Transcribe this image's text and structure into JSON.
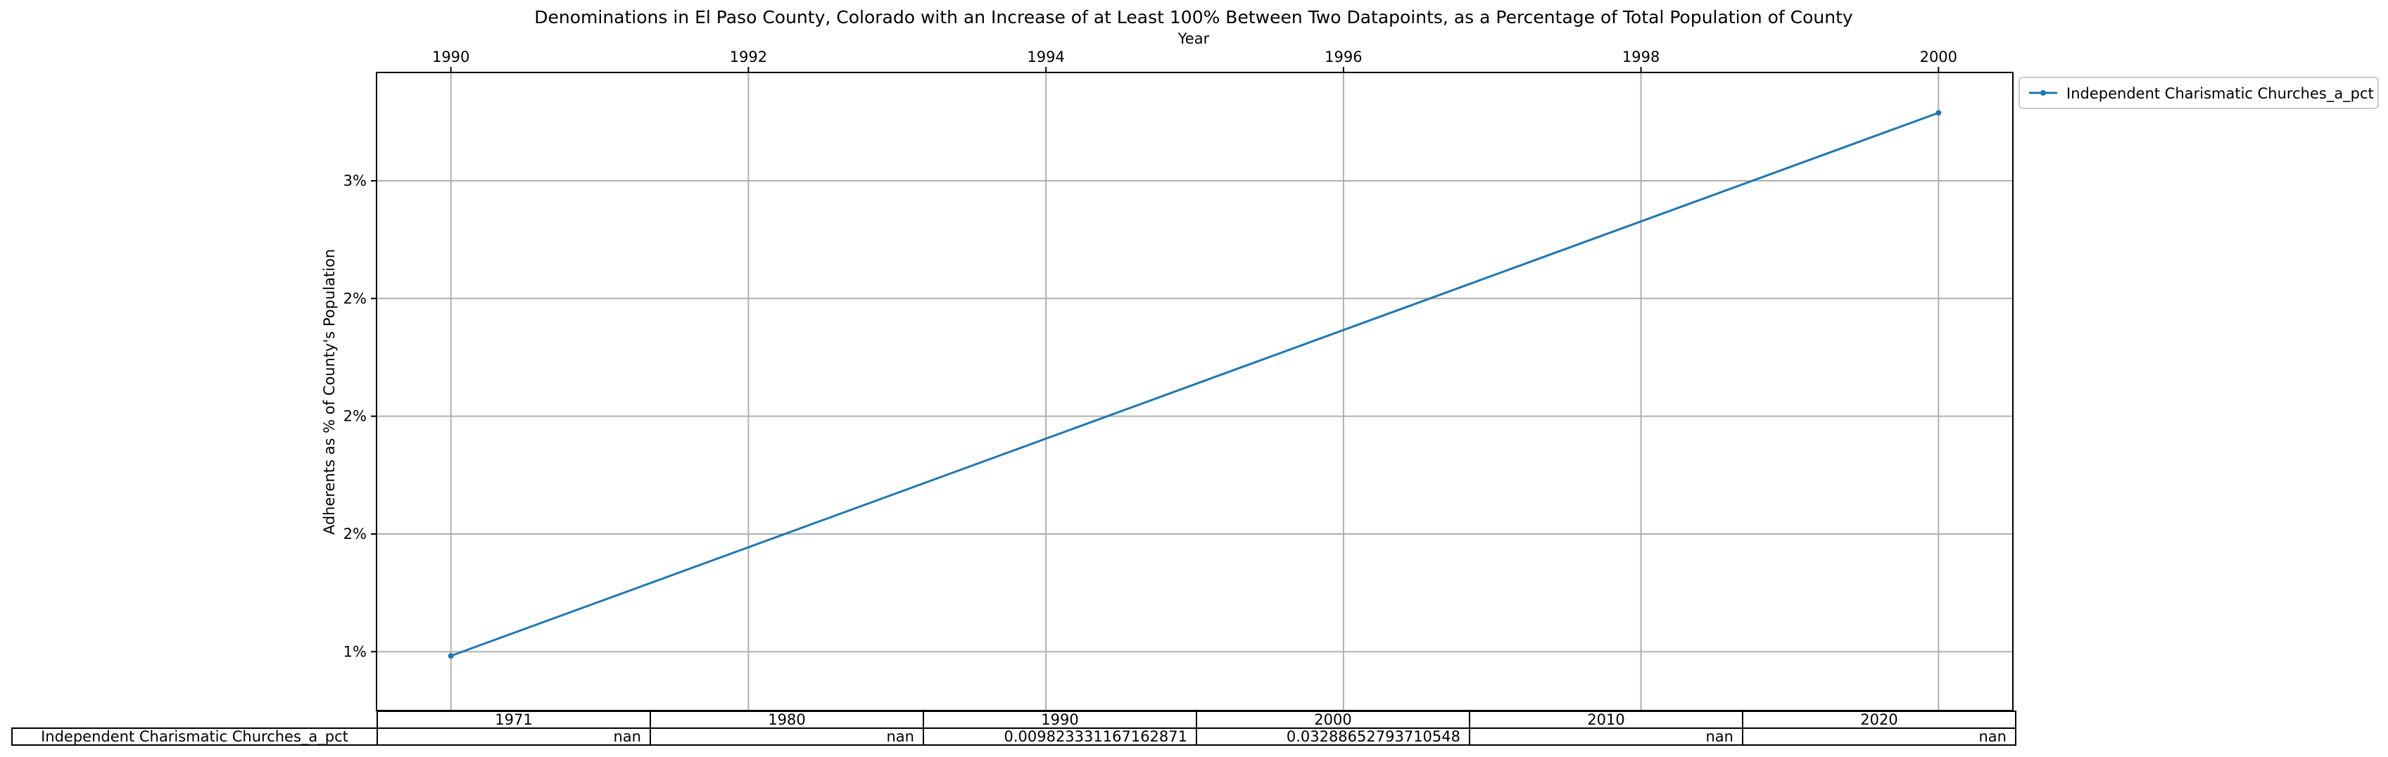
{
  "chart_data": {
    "type": "line",
    "title": "Denominations in El Paso County, Colorado with an Increase of at Least 100% Between Two Datapoints, as a Percentage of Total Population of County",
    "xlabel": "Year",
    "ylabel": "Adherents as % of County's Population",
    "xlim": [
      1989.5,
      2000.5
    ],
    "ylim": [
      0.0075,
      0.0346
    ],
    "x_ticks": [
      1990,
      1992,
      1994,
      1996,
      1998,
      2000
    ],
    "y_ticks": [
      0.01,
      0.015,
      0.02,
      0.025,
      0.03
    ],
    "y_tick_labels": [
      "1%",
      "2%",
      "2%",
      "2%",
      "3%"
    ],
    "grid": true,
    "x_axis_position": "top",
    "legend_position": "outside-right",
    "series": [
      {
        "name": "Independent Charismatic Churches_a_pct",
        "color": "#1f77b4",
        "x": [
          1990,
          2000
        ],
        "values": [
          0.009823331167162871,
          0.03288652793710548
        ]
      }
    ],
    "table": {
      "columns": [
        "1971",
        "1980",
        "1990",
        "2000",
        "2010",
        "2020"
      ],
      "rows": [
        {
          "label": "Independent Charismatic Churches_a_pct",
          "cells": [
            "nan",
            "nan",
            "0.009823331167162871",
            "0.03288652793710548",
            "nan",
            "nan"
          ]
        }
      ]
    }
  }
}
